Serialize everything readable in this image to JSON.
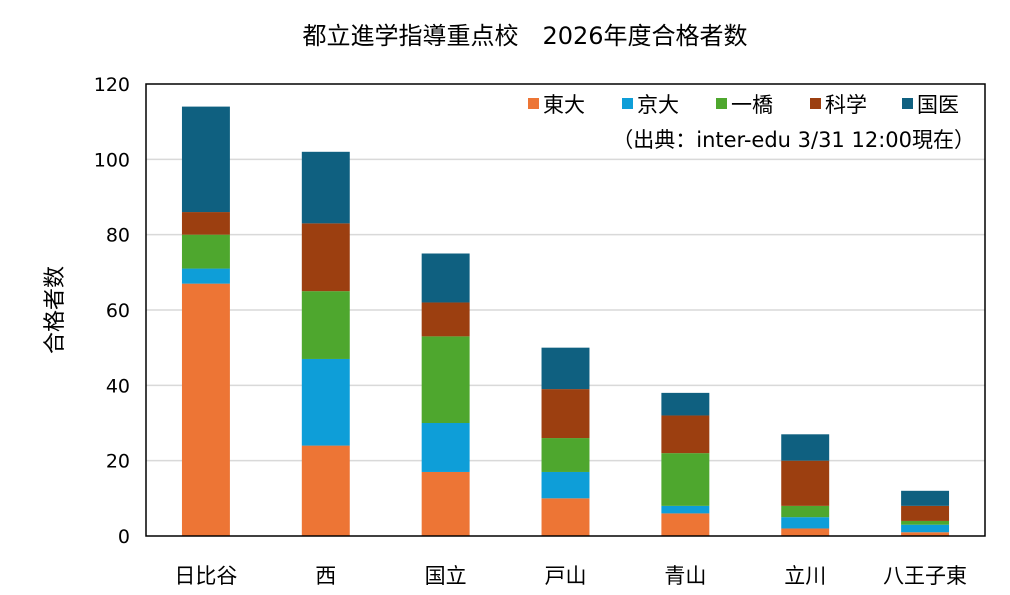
{
  "chart_data": {
    "type": "bar",
    "stacked": true,
    "title": "都立進学指導重点校　2026年度合格者数",
    "source_note": "（出典：inter-edu 3/31 12:00現在）",
    "xlabel": "",
    "ylabel": "合格者数",
    "ylim": [
      0,
      120
    ],
    "yticks": [
      0,
      20,
      40,
      60,
      80,
      100,
      120
    ],
    "grid": true,
    "legend_position": "top-right",
    "categories": [
      "日比谷",
      "西",
      "国立",
      "戸山",
      "青山",
      "立川",
      "八王子東"
    ],
    "series": [
      {
        "name": "東大",
        "color": "#ED7535",
        "values": [
          67,
          24,
          17,
          10,
          6,
          2,
          1
        ]
      },
      {
        "name": "京大",
        "color": "#0E9ED8",
        "values": [
          4,
          23,
          13,
          7,
          2,
          3,
          2
        ]
      },
      {
        "name": "一橋",
        "color": "#4EA72E",
        "values": [
          9,
          18,
          23,
          9,
          14,
          3,
          1
        ]
      },
      {
        "name": "科学",
        "color": "#9C3F10",
        "values": [
          6,
          18,
          9,
          13,
          10,
          12,
          4
        ]
      },
      {
        "name": "国医",
        "color": "#0F6080",
        "values": [
          28,
          19,
          13,
          11,
          6,
          7,
          4
        ]
      }
    ]
  }
}
